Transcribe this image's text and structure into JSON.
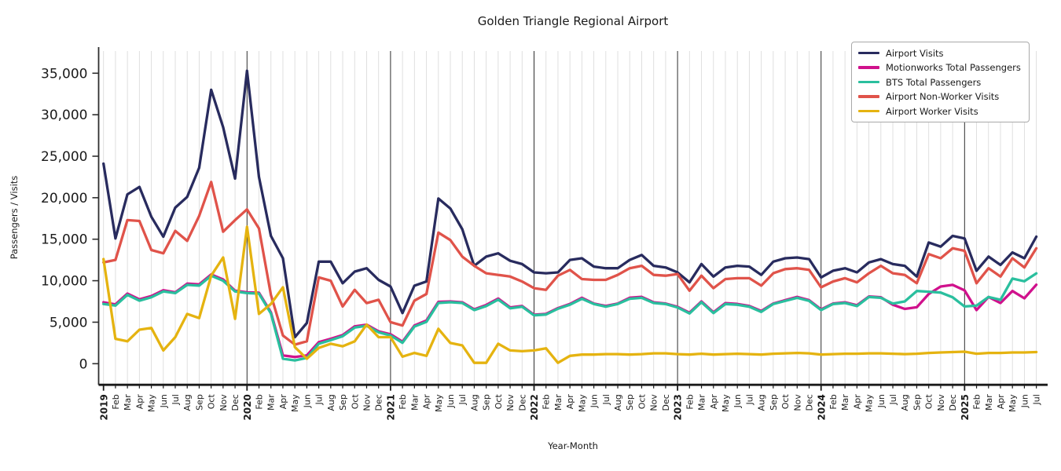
{
  "title": "Golden Triangle Regional Airport",
  "xlabel": "Year-Month",
  "ylabel": "Passengers / Visits",
  "chart_data": {
    "type": "line",
    "title": "Golden Triangle Regional Airport",
    "xlabel": "Year-Month",
    "ylabel": "Passengers / Visits",
    "legend_position": "upper right",
    "grid": "vertical gridline per month, dark vertical line at each January",
    "ylim": [
      0,
      35000
    ],
    "yticks": [
      0,
      5000,
      10000,
      15000,
      20000,
      25000,
      30000,
      35000
    ],
    "ytick_labels": [
      "0",
      "5,000",
      "10,000",
      "15,000",
      "20,000",
      "25,000",
      "30,000",
      "35,000"
    ],
    "x_tick_labels": [
      "2019",
      "Feb",
      "Mar",
      "Apr",
      "May",
      "Jun",
      "Jul",
      "Aug",
      "Sep",
      "Oct",
      "Nov",
      "Dec",
      "2020",
      "Feb",
      "Mar",
      "Apr",
      "May",
      "Jun",
      "Jul",
      "Aug",
      "Sep",
      "Oct",
      "Nov",
      "Dec",
      "2021",
      "Feb",
      "Mar",
      "Apr",
      "May",
      "Jun",
      "Jul",
      "Aug",
      "Sep",
      "Oct",
      "Nov",
      "Dec",
      "2022",
      "Feb",
      "Mar",
      "Apr",
      "May",
      "Jun",
      "Jul",
      "Aug",
      "Sep",
      "Oct",
      "Nov",
      "Dec",
      "2023",
      "Feb",
      "Mar",
      "Apr",
      "May",
      "Jun",
      "Jul",
      "Aug",
      "Sep",
      "Oct",
      "Nov",
      "Dec",
      "2024",
      "Feb",
      "Mar",
      "Apr",
      "May",
      "Jun",
      "Jul",
      "Aug",
      "Sep",
      "Oct",
      "Nov",
      "Dec",
      "2025",
      "Feb",
      "Mar",
      "Apr",
      "May",
      "Jun",
      "Jul"
    ],
    "series": [
      {
        "name": "Airport Visits",
        "color": "#282b5e",
        "values": [
          24100,
          15100,
          20400,
          21300,
          17700,
          15300,
          18800,
          20100,
          23600,
          33000,
          28500,
          22300,
          35300,
          22500,
          15400,
          12700,
          3200,
          4900,
          12300,
          12300,
          9700,
          11100,
          11500,
          10100,
          9300,
          6100,
          9400,
          9900,
          19900,
          18700,
          16200,
          11800,
          12900,
          13300,
          12400,
          12000,
          11000,
          10900,
          11000,
          12500,
          12700,
          11700,
          11500,
          11500,
          12500,
          13100,
          11800,
          11600,
          11000,
          9800,
          12000,
          10500,
          11600,
          11800,
          11700,
          10700,
          12300,
          12700,
          12800,
          12600,
          10400,
          11200,
          11500,
          11000,
          12200,
          12600,
          12000,
          11800,
          10500,
          14600,
          14100,
          15400,
          15100,
          11200,
          12900,
          11900,
          13400,
          12700,
          15300
        ]
      },
      {
        "name": "Motionworks Total Passengers",
        "color": "#d0118c",
        "values": [
          7400,
          7150,
          8450,
          7750,
          8150,
          8850,
          8600,
          9650,
          9550,
          10750,
          10150,
          8800,
          8600,
          8550,
          6200,
          1000,
          800,
          1000,
          2600,
          3000,
          3450,
          4500,
          4700,
          3900,
          3550,
          2650,
          4600,
          5200,
          7450,
          7500,
          7400,
          6550,
          7080,
          7850,
          6780,
          6950,
          5900,
          6000,
          6700,
          7200,
          7950,
          7250,
          6950,
          7250,
          7950,
          8050,
          7400,
          7250,
          6850,
          6150,
          7500,
          6200,
          7300,
          7200,
          6950,
          6350,
          7250,
          7650,
          8050,
          7650,
          6550,
          7250,
          7400,
          7050,
          8100,
          8000,
          7100,
          6600,
          6800,
          8400,
          9300,
          9500,
          8830,
          6460,
          8040,
          7310,
          8760,
          7880,
          9520
        ]
      },
      {
        "name": "BTS Total Passengers",
        "color": "#2abf9e",
        "values": [
          7200,
          7000,
          8300,
          7600,
          8000,
          8700,
          8500,
          9500,
          9400,
          10600,
          10000,
          8700,
          8500,
          8450,
          6050,
          600,
          400,
          700,
          2400,
          2840,
          3310,
          4350,
          4570,
          3780,
          3400,
          2520,
          4470,
          5040,
          7310,
          7410,
          7310,
          6460,
          6940,
          7720,
          6680,
          6870,
          5830,
          5920,
          6620,
          7100,
          7820,
          7190,
          6870,
          7190,
          7820,
          7940,
          7310,
          7190,
          6770,
          6050,
          7410,
          6100,
          7190,
          7100,
          6870,
          6240,
          7190,
          7570,
          7940,
          7570,
          6460,
          7190,
          7310,
          6940,
          8040,
          7940,
          7250,
          7500,
          8760,
          8670,
          8570,
          8000,
          6900,
          7000,
          8040,
          7700,
          10250,
          9930,
          10880
        ]
      },
      {
        "name": "Airport Non-Worker Visits",
        "color": "#e0534a",
        "values": [
          12200,
          12500,
          17300,
          17200,
          13700,
          13300,
          16000,
          14800,
          17800,
          21900,
          15900,
          17300,
          18600,
          16300,
          8300,
          3400,
          2300,
          2700,
          10400,
          10000,
          6900,
          8900,
          7300,
          7700,
          5000,
          4600,
          7600,
          8400,
          15800,
          14900,
          12900,
          11800,
          10900,
          10700,
          10500,
          9900,
          9100,
          8900,
          10600,
          11300,
          10200,
          10100,
          10100,
          10700,
          11500,
          11800,
          10700,
          10600,
          10800,
          8800,
          10600,
          9100,
          10200,
          10300,
          10300,
          9400,
          10900,
          11400,
          11500,
          11300,
          9200,
          9900,
          10300,
          9800,
          10900,
          11800,
          10900,
          10700,
          9700,
          13200,
          12700,
          13900,
          13600,
          9700,
          11500,
          10500,
          12700,
          11600,
          13900
        ]
      },
      {
        "name": "Airport Worker Visits",
        "color": "#e5b310",
        "values": [
          12600,
          3000,
          2700,
          4100,
          4300,
          1600,
          3200,
          6000,
          5500,
          10600,
          12800,
          5400,
          16500,
          6000,
          7200,
          9200,
          2000,
          600,
          1900,
          2400,
          2100,
          2700,
          4700,
          3200,
          3200,
          850,
          1300,
          950,
          4200,
          2500,
          2200,
          100,
          100,
          2400,
          1600,
          1500,
          1600,
          1850,
          100,
          950,
          1100,
          1100,
          1150,
          1150,
          1100,
          1150,
          1250,
          1250,
          1150,
          1100,
          1200,
          1100,
          1150,
          1200,
          1150,
          1100,
          1200,
          1250,
          1300,
          1250,
          1100,
          1150,
          1200,
          1200,
          1250,
          1250,
          1200,
          1150,
          1200,
          1300,
          1350,
          1400,
          1450,
          1200,
          1300,
          1300,
          1350,
          1350,
          1400
        ]
      }
    ]
  }
}
